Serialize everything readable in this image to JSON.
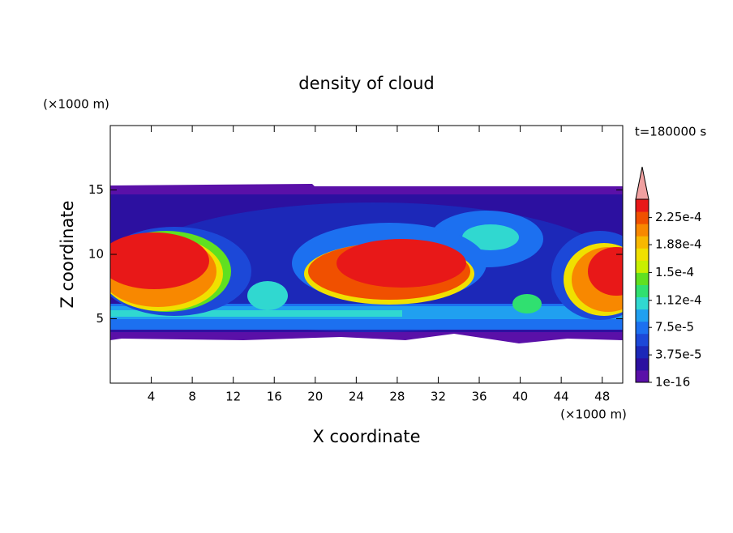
{
  "chart_data": {
    "type": "contour",
    "title": "density of cloud",
    "annotation": "t=180000 s",
    "xlabel": "X coordinate",
    "ylabel": "Z coordinate",
    "xunit": "(×1000 m)",
    "yunit": "(×1000 m)",
    "xlim": [
      0,
      50
    ],
    "ylim": [
      0,
      20
    ],
    "xticks": [
      4,
      8,
      12,
      16,
      20,
      24,
      28,
      32,
      36,
      40,
      44,
      48
    ],
    "yticks": [
      5,
      10,
      15
    ],
    "colorbar": {
      "clim": [
        1e-16,
        0.00025
      ],
      "ticks": [
        1e-16,
        {
          "value": 3.75e-05,
          "label": "3.75e-5"
        },
        {
          "value": 7.5e-05,
          "label": "7.5e-5"
        },
        {
          "value": 0.000112,
          "label": "1.12e-4"
        },
        {
          "value": 0.00015,
          "label": "1.5e-4"
        },
        {
          "value": 0.000188,
          "label": "1.88e-4"
        },
        {
          "value": 0.000225,
          "label": "2.25e-4"
        }
      ],
      "colors": [
        "#5a10a8",
        "#2c10a0",
        "#1c28b8",
        "#1c48d8",
        "#1c70f0",
        "#20a0f0",
        "#30d8d0",
        "#30e070",
        "#60e020",
        "#c8f000",
        "#f0e000",
        "#f8b800",
        "#f88800",
        "#f05000",
        "#e81818"
      ],
      "extend_color": "#f0a0a0"
    }
  }
}
